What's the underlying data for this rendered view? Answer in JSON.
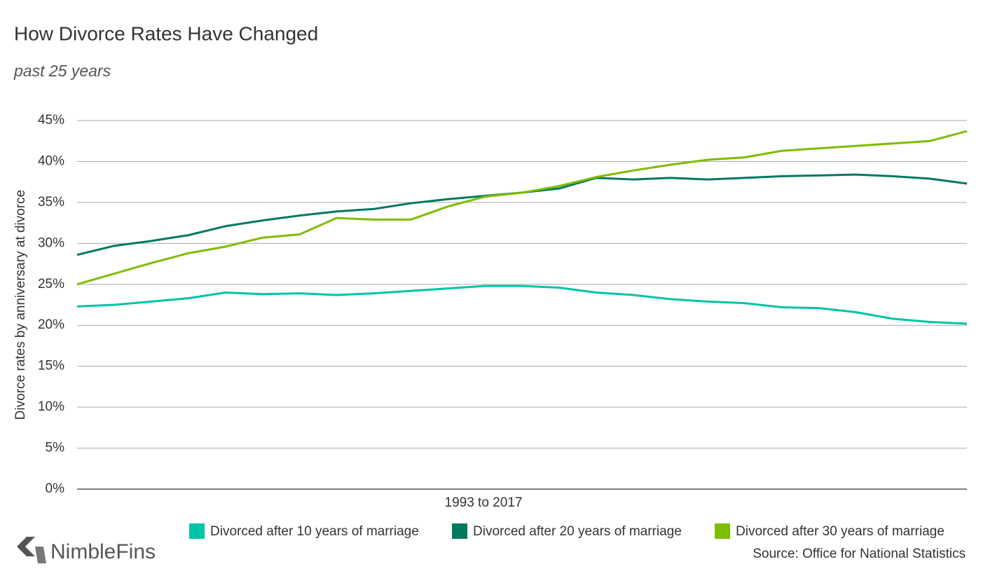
{
  "chart_data": {
    "type": "line",
    "title": "How Divorce Rates Have Changed",
    "subtitle": "past 25 years",
    "y_label": "Divorce rates by anniversary at divorce",
    "x_label": "1993 to 2017",
    "source": "Source: Office for National Statistics",
    "brand": "NimbleFins",
    "categories": [
      null,
      null,
      null,
      null,
      null,
      null,
      null,
      null,
      null,
      null,
      null,
      null,
      null,
      null,
      null,
      null,
      null,
      null,
      null,
      null,
      null,
      null,
      null,
      null,
      null
    ],
    "ylim": [
      0,
      45
    ],
    "yticks": [
      {
        "value": 0,
        "label": "0%"
      },
      {
        "value": 5,
        "label": "5%"
      },
      {
        "value": 10,
        "label": "10%"
      },
      {
        "value": 15,
        "label": "15%"
      },
      {
        "value": 20,
        "label": "20%"
      },
      {
        "value": 25,
        "label": "25%"
      },
      {
        "value": 30,
        "label": "30%"
      },
      {
        "value": 35,
        "label": "35%"
      },
      {
        "value": 40,
        "label": "40%"
      },
      {
        "value": 45,
        "label": "45%"
      }
    ],
    "grid": true,
    "legend": "bottom",
    "series": [
      {
        "name": "Divorced after 10 years of marriage",
        "color": "#00c4a7",
        "values": [
          22.3,
          22.5,
          22.9,
          23.3,
          24.0,
          23.8,
          23.9,
          23.7,
          23.9,
          24.2,
          24.5,
          24.8,
          24.8,
          24.6,
          24.0,
          23.7,
          23.2,
          22.9,
          22.7,
          22.2,
          22.1,
          21.6,
          20.8,
          20.4,
          20.2
        ]
      },
      {
        "name": "Divorced after 20 years of marriage",
        "color": "#007a5e",
        "values": [
          28.6,
          29.7,
          30.3,
          31.0,
          32.1,
          32.8,
          33.4,
          33.9,
          34.2,
          34.9,
          35.4,
          35.8,
          36.2,
          36.7,
          38.0,
          37.8,
          38.0,
          37.8,
          38.0,
          38.2,
          38.3,
          38.4,
          38.2,
          37.9,
          37.3
        ]
      },
      {
        "name": "Divorced after 30 years of marriage",
        "color": "#80bc00",
        "values": [
          25.0,
          26.3,
          27.6,
          28.8,
          29.6,
          30.7,
          31.1,
          33.1,
          32.9,
          32.9,
          34.5,
          35.7,
          36.2,
          37.0,
          38.1,
          38.9,
          39.6,
          40.2,
          40.5,
          41.3,
          41.6,
          41.9,
          42.2,
          42.5,
          43.7
        ]
      }
    ]
  }
}
